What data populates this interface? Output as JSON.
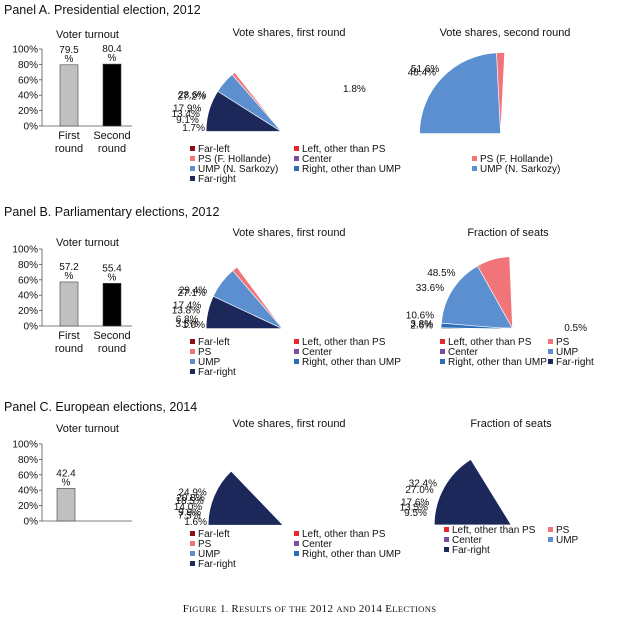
{
  "caption": "Figure 1. Results of the 2012 and 2014 Elections",
  "colors": {
    "Far-left": "#8b0f12",
    "Left, other than PS": "#e8262b",
    "PS": "#f07478",
    "Center": "#7a4e9e",
    "UMP": "#5b8fcf",
    "Right, other than UMP": "#2a6db8",
    "Far-right": "#1b2859"
  },
  "chart_data": [
    {
      "type": "bar",
      "panel": "A",
      "title": "Voter turnout",
      "categories": [
        "First round",
        "Second round"
      ],
      "values": [
        79.5,
        80.4
      ],
      "value_labels": [
        "79.5 %",
        "80.4 %"
      ],
      "ylim": [
        0,
        100
      ],
      "ytick_labels": [
        "0%",
        "20%",
        "40%",
        "60%",
        "80%",
        "100%"
      ],
      "bar_colors": [
        "#c0c0c0",
        "#000000"
      ]
    },
    {
      "type": "pie",
      "panel": "A",
      "title": "Vote shares, first round",
      "slices": [
        {
          "name": "Far-left",
          "value": 1.7,
          "label": "1.7%"
        },
        {
          "name": "Left, other than PS",
          "value": 13.4,
          "label": "13.4%"
        },
        {
          "name": "PS",
          "value": 28.6,
          "label": "28.6%"
        },
        {
          "name": "Center",
          "value": 9.1,
          "label": "9.1%"
        },
        {
          "name": "UMP",
          "value": 27.2,
          "label": "27.2%"
        },
        {
          "name": "Right, other than UMP",
          "value": 1.8,
          "label": "1.8%"
        },
        {
          "name": "Far-right",
          "value": 17.9,
          "label": "17.9%"
        }
      ],
      "legend": [
        "Far-left",
        "Left, other than PS",
        "PS (F. Hollande)",
        "Center",
        "UMP (N. Sarkozy)",
        "Right, other than UMP",
        "Far-right"
      ]
    },
    {
      "type": "pie",
      "panel": "A",
      "title": "Vote shares, second round",
      "slices": [
        {
          "name": "PS",
          "value": 51.6,
          "label": "51.6%"
        },
        {
          "name": "UMP",
          "value": 48.4,
          "label": "48.4%"
        }
      ],
      "legend": [
        "PS (F. Hollande)",
        "UMP (N. Sarkozy)"
      ]
    },
    {
      "type": "bar",
      "panel": "B",
      "title": "Voter turnout",
      "categories": [
        "First round",
        "Second round"
      ],
      "values": [
        57.2,
        55.4
      ],
      "value_labels": [
        "57.2 %",
        "55.4 %"
      ],
      "ylim": [
        0,
        100
      ],
      "ytick_labels": [
        "0%",
        "20%",
        "40%",
        "60%",
        "80%",
        "100%"
      ],
      "bar_colors": [
        "#c0c0c0",
        "#000000"
      ]
    },
    {
      "type": "pie",
      "panel": "B",
      "title": "Vote shares, first round",
      "slices": [
        {
          "name": "Far-left",
          "value": 1.0,
          "label": "1.0%"
        },
        {
          "name": "Left, other than PS",
          "value": 17.4,
          "label": "17.4%"
        },
        {
          "name": "PS",
          "value": 29.4,
          "label": "29.4%"
        },
        {
          "name": "Center",
          "value": 6.8,
          "label": "6.8%"
        },
        {
          "name": "UMP",
          "value": 27.1,
          "label": "27.1%"
        },
        {
          "name": "Right, other than UMP",
          "value": 3.5,
          "label": "3.5%"
        },
        {
          "name": "Far-right",
          "value": 13.8,
          "label": "13.8%"
        }
      ],
      "legend": [
        "Far-left",
        "Left, other than PS",
        "PS",
        "Center",
        "UMP",
        "Right, other than UMP",
        "Far-right"
      ]
    },
    {
      "type": "pie",
      "panel": "B",
      "title": "Fraction of seats",
      "slices": [
        {
          "name": "Left, other than PS",
          "value": 10.6,
          "label": "10.6%"
        },
        {
          "name": "PS",
          "value": 48.5,
          "label": "48.5%"
        },
        {
          "name": "Center",
          "value": 3.8,
          "label": "3.8%"
        },
        {
          "name": "UMP",
          "value": 33.6,
          "label": "33.6%"
        },
        {
          "name": "Right, other than UMP",
          "value": 2.6,
          "label": "2.6%"
        },
        {
          "name": "Far-right",
          "value": 0.5,
          "label": "0.5%"
        }
      ],
      "legend": [
        "Left, other than PS",
        "PS",
        "Center",
        "UMP",
        "Right, other than UMP",
        "Far-right"
      ]
    },
    {
      "type": "bar",
      "panel": "C",
      "title": "Voter turnout",
      "categories": [
        ""
      ],
      "values": [
        42.4
      ],
      "value_labels": [
        "42.4 %"
      ],
      "ylim": [
        0,
        100
      ],
      "ytick_labels": [
        "0%",
        "20%",
        "40%",
        "60%",
        "80%",
        "100%"
      ],
      "bar_colors": [
        "#c0c0c0"
      ]
    },
    {
      "type": "pie",
      "panel": "C",
      "title": "Vote shares, first round",
      "slices": [
        {
          "name": "Far-left",
          "value": 1.6,
          "label": "1.6%"
        },
        {
          "name": "Left, other than PS",
          "value": 18.5,
          "label": "18.5%"
        },
        {
          "name": "PS",
          "value": 14.0,
          "label": "14.0%"
        },
        {
          "name": "Center",
          "value": 9.9,
          "label": "9.9%"
        },
        {
          "name": "UMP",
          "value": 20.8,
          "label": "20.8%"
        },
        {
          "name": "Right, other than UMP",
          "value": 7.5,
          "label": "7.5%"
        },
        {
          "name": "Far-right",
          "value": 24.9,
          "label": "24.9%"
        }
      ],
      "legend": [
        "Far-left",
        "Left, other than PS",
        "PS",
        "Center",
        "UMP",
        "Right, other than UMP",
        "Far-right"
      ]
    },
    {
      "type": "pie",
      "panel": "C",
      "title": "Fraction of seats",
      "slices": [
        {
          "name": "Left, other than PS",
          "value": 13.5,
          "label": "13.5%"
        },
        {
          "name": "PS",
          "value": 17.6,
          "label": "17.6%"
        },
        {
          "name": "Center",
          "value": 9.5,
          "label": "9.5%"
        },
        {
          "name": "UMP",
          "value": 27.0,
          "label": "27.0%"
        },
        {
          "name": "Far-right",
          "value": 32.4,
          "label": "32.4%"
        }
      ],
      "legend": [
        "Left, other than PS",
        "PS",
        "Center",
        "UMP",
        "Far-right"
      ]
    }
  ],
  "panels": [
    {
      "id": "A",
      "title": "Panel A. Presidential election, 2012"
    },
    {
      "id": "B",
      "title": "Panel B. Parliamentary elections, 2012"
    },
    {
      "id": "C",
      "title": "Panel C. European elections, 2014"
    }
  ]
}
